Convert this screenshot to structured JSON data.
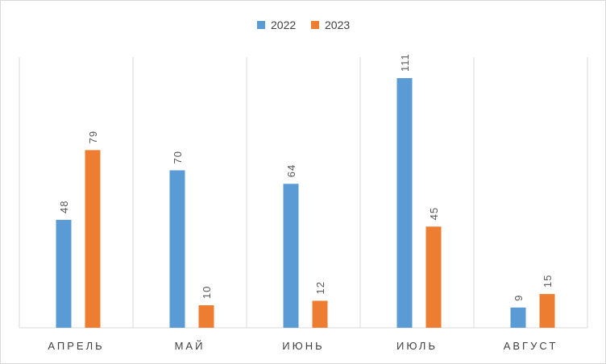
{
  "chart_data": {
    "type": "bar",
    "categories": [
      "АПРЕЛЬ",
      "МАЙ",
      "ИЮНЬ",
      "ИЮЛЬ",
      "АВГУСТ"
    ],
    "series": [
      {
        "name": "2022",
        "values": [
          48,
          70,
          64,
          111,
          9
        ],
        "color": "#5b9bd5"
      },
      {
        "name": "2023",
        "values": [
          79,
          10,
          12,
          45,
          15
        ],
        "color": "#ed7d31"
      }
    ],
    "legend_position": "top-center",
    "grid": "vertical category separators",
    "data_labels": "rotated, above bars",
    "ylim": [
      0,
      120
    ]
  }
}
